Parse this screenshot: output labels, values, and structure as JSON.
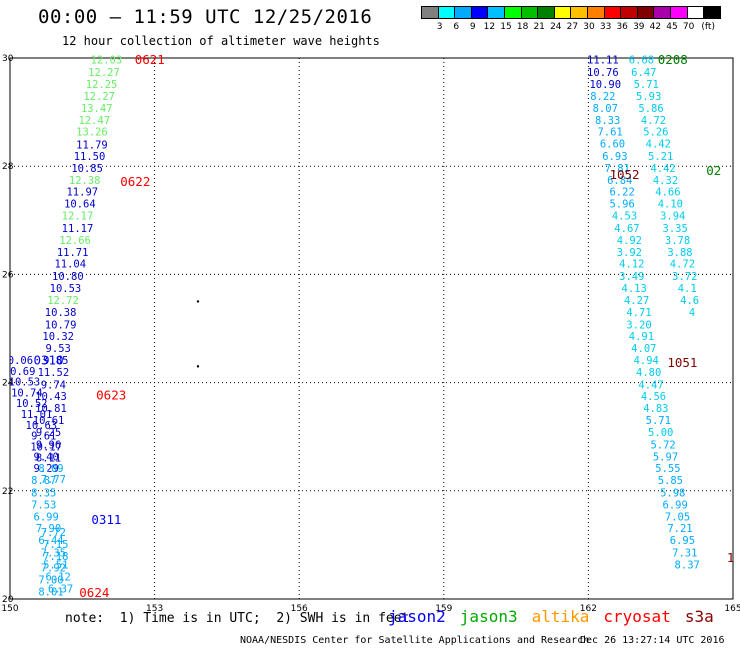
{
  "header": {
    "title": "00:00 – 11:59 UTC 12/25/2016",
    "subtitle": "12 hour collection of altimeter wave heights"
  },
  "colorbar": {
    "unit": "(ft)",
    "labels": [
      "3",
      "6",
      "9",
      "12",
      "15",
      "18",
      "21",
      "24",
      "27",
      "30",
      "33",
      "36",
      "39",
      "42",
      "45",
      "70"
    ],
    "colors": [
      "#808080",
      "#00ffff",
      "#00aaff",
      "#0000ff",
      "#00c0ff",
      "#00ff00",
      "#00c000",
      "#008000",
      "#ffff00",
      "#ffc000",
      "#ff8000",
      "#ff0000",
      "#c00000",
      "#800000",
      "#aa00aa",
      "#ff00ff",
      "#ffffff",
      "#000000"
    ]
  },
  "footer": {
    "note": "note:  1) Time is in UTC;  2) SWH is in feet",
    "credit": "NOAA/NESDIS Center for Satellite Applications and Research",
    "timestamp": "Dec 26 13:27:14 UTC 2016"
  },
  "legend": [
    {
      "name": "jason2",
      "color": "#0000ff"
    },
    {
      "name": "jason3",
      "color": "#00aa00"
    },
    {
      "name": "altika",
      "color": "#ff9900"
    },
    {
      "name": "cryosat",
      "color": "#ff0000"
    },
    {
      "name": "s3a",
      "color": "#880000"
    }
  ],
  "chart_data": {
    "type": "scatter",
    "xlim": [
      150,
      165
    ],
    "ylim": [
      20,
      30
    ],
    "x_ticks": [
      "150",
      "153",
      "156",
      "159",
      "162",
      "165"
    ],
    "y_ticks": [
      "20",
      "22",
      "24",
      "26",
      "28",
      "30"
    ],
    "grid": true,
    "times": [
      {
        "label": "0621",
        "x": 152.9,
        "y": 29.95,
        "color": "#ff0000"
      },
      {
        "label": "0622",
        "x": 152.6,
        "y": 27.7,
        "color": "#ff0000"
      },
      {
        "label": "0623",
        "x": 152.1,
        "y": 23.75,
        "color": "#ff0000"
      },
      {
        "label": "0624",
        "x": 151.75,
        "y": 20.1,
        "color": "#ff0000"
      },
      {
        "label": "0310",
        "x": 150.8,
        "y": 24.4,
        "color": "#0000ff"
      },
      {
        "label": "0311",
        "x": 152.0,
        "y": 21.45,
        "color": "#0000ff"
      },
      {
        "label": "0208",
        "x": 163.75,
        "y": 29.95,
        "color": "#008000"
      },
      {
        "label": "1052",
        "x": 162.75,
        "y": 27.83,
        "color": "#800000"
      },
      {
        "label": "1051",
        "x": 163.95,
        "y": 24.35,
        "color": "#800000"
      },
      {
        "label": "02",
        "x": 164.6,
        "y": 27.9,
        "color": "#008000"
      },
      {
        "label": "1",
        "x": 164.95,
        "y": 20.75,
        "color": "#800000"
      }
    ],
    "points": [
      {
        "v": "12.03",
        "x": 152.0,
        "y": 29.95,
        "c": "#66ee66"
      },
      {
        "v": "12.27",
        "x": 151.95,
        "y": 29.72,
        "c": "#66ee66"
      },
      {
        "v": "12.25",
        "x": 151.9,
        "y": 29.5,
        "c": "#66ee66"
      },
      {
        "v": "12.27",
        "x": 151.85,
        "y": 29.28,
        "c": "#66ee66"
      },
      {
        "v": "13.47",
        "x": 151.8,
        "y": 29.06,
        "c": "#66ee66"
      },
      {
        "v": "12.47",
        "x": 151.75,
        "y": 28.84,
        "c": "#66ee66"
      },
      {
        "v": "13.26",
        "x": 151.7,
        "y": 28.62,
        "c": "#66ee66"
      },
      {
        "v": "11.79",
        "x": 151.7,
        "y": 28.38,
        "c": "#0000cc"
      },
      {
        "v": "11.50",
        "x": 151.65,
        "y": 28.17,
        "c": "#0000cc"
      },
      {
        "v": "10.85",
        "x": 151.6,
        "y": 27.95,
        "c": "#0000cc"
      },
      {
        "v": "12.38",
        "x": 151.55,
        "y": 27.73,
        "c": "#66ee66"
      },
      {
        "v": "11.97",
        "x": 151.5,
        "y": 27.51,
        "c": "#0000cc"
      },
      {
        "v": "10.64",
        "x": 151.45,
        "y": 27.29,
        "c": "#0000cc"
      },
      {
        "v": "12.17",
        "x": 151.4,
        "y": 27.07,
        "c": "#66ee66"
      },
      {
        "v": "11.17",
        "x": 151.4,
        "y": 26.84,
        "c": "#0000cc"
      },
      {
        "v": "12.66",
        "x": 151.35,
        "y": 26.62,
        "c": "#66ee66"
      },
      {
        "v": "11.71",
        "x": 151.3,
        "y": 26.4,
        "c": "#0000cc"
      },
      {
        "v": "11.04",
        "x": 151.25,
        "y": 26.18,
        "c": "#0000cc"
      },
      {
        "v": "10.80",
        "x": 151.2,
        "y": 25.95,
        "c": "#0000cc"
      },
      {
        "v": "10.53",
        "x": 151.15,
        "y": 25.73,
        "c": "#0000cc"
      },
      {
        "v": "12.72",
        "x": 151.1,
        "y": 25.51,
        "c": "#66ee66"
      },
      {
        "v": "10.38",
        "x": 151.05,
        "y": 25.29,
        "c": "#0000cc"
      },
      {
        "v": "10.79",
        "x": 151.05,
        "y": 25.06,
        "c": "#0000cc"
      },
      {
        "v": "10.32",
        "x": 151.0,
        "y": 24.84,
        "c": "#0000cc"
      },
      {
        "v": "9.53",
        "x": 151.0,
        "y": 24.62,
        "c": "#0000cc"
      },
      {
        "v": "9.85",
        "x": 150.95,
        "y": 24.4,
        "c": "#0000cc"
      },
      {
        "v": "11.52",
        "x": 150.9,
        "y": 24.18,
        "c": "#0000cc"
      },
      {
        "v": "9.74",
        "x": 150.9,
        "y": 23.95,
        "c": "#0000cc"
      },
      {
        "v": "10.43",
        "x": 150.85,
        "y": 23.73,
        "c": "#0000cc"
      },
      {
        "v": "10.81",
        "x": 150.85,
        "y": 23.51,
        "c": "#0000cc"
      },
      {
        "v": "10.61",
        "x": 150.8,
        "y": 23.29,
        "c": "#0000cc"
      },
      {
        "v": "9.25",
        "x": 150.8,
        "y": 23.07,
        "c": "#0000cc"
      },
      {
        "v": "9.96",
        "x": 150.8,
        "y": 22.84,
        "c": "#0000cc"
      },
      {
        "v": "9.40",
        "x": 150.75,
        "y": 22.62,
        "c": "#0000cc"
      },
      {
        "v": "9.29",
        "x": 150.75,
        "y": 22.4,
        "c": "#0000cc"
      },
      {
        "v": "8.87",
        "x": 150.7,
        "y": 22.18,
        "c": "#00aaff"
      },
      {
        "v": "8.35",
        "x": 150.7,
        "y": 21.95,
        "c": "#00aaff"
      },
      {
        "v": "7.53",
        "x": 150.7,
        "y": 21.73,
        "c": "#00aaff"
      },
      {
        "v": "6.99",
        "x": 150.75,
        "y": 21.51,
        "c": "#00aaff"
      },
      {
        "v": "7.90",
        "x": 150.8,
        "y": 21.29,
        "c": "#00aaff"
      },
      {
        "v": "6.44",
        "x": 150.85,
        "y": 21.07,
        "c": "#00aaff"
      },
      {
        "v": "7.35",
        "x": 150.9,
        "y": 20.84,
        "c": "#00aaff"
      },
      {
        "v": "5.51",
        "x": 150.95,
        "y": 20.62,
        "c": "#00aaff"
      },
      {
        "v": "6.12",
        "x": 151.0,
        "y": 20.4,
        "c": "#00aaff"
      },
      {
        "v": "6.37",
        "x": 151.05,
        "y": 20.18,
        "c": "#00aaff"
      },
      {
        "v": "10.06",
        "x": 150.15,
        "y": 24.4,
        "c": "#0000cc"
      },
      {
        "v": "10.69",
        "x": 150.2,
        "y": 24.2,
        "c": "#0000cc"
      },
      {
        "v": "10.53",
        "x": 150.3,
        "y": 24.0,
        "c": "#0000cc"
      },
      {
        "v": "10.74",
        "x": 150.35,
        "y": 23.8,
        "c": "#0000cc"
      },
      {
        "v": "10.52",
        "x": 150.45,
        "y": 23.6,
        "c": "#0000cc"
      },
      {
        "v": "11.01",
        "x": 150.55,
        "y": 23.4,
        "c": "#0000cc"
      },
      {
        "v": "10.63",
        "x": 150.65,
        "y": 23.2,
        "c": "#0000cc"
      },
      {
        "v": "9.61",
        "x": 150.7,
        "y": 23.0,
        "c": "#0000cc"
      },
      {
        "v": "10.17",
        "x": 150.75,
        "y": 22.8,
        "c": "#0000cc"
      },
      {
        "v": "8.11",
        "x": 150.8,
        "y": 22.6,
        "c": "#0000cc"
      },
      {
        "v": "8.09",
        "x": 150.85,
        "y": 22.4,
        "c": "#00aaff"
      },
      {
        "v": "7.77",
        "x": 150.9,
        "y": 22.2,
        "c": "#00aaff"
      },
      {
        "v": "7.15",
        "x": 150.95,
        "y": 21.0,
        "c": "#00aaff"
      },
      {
        "v": "7.18",
        "x": 150.95,
        "y": 20.78,
        "c": "#00aaff"
      },
      {
        "v": "7.92",
        "x": 150.9,
        "y": 20.56,
        "c": "#00aaff"
      },
      {
        "v": "7.00",
        "x": 150.85,
        "y": 20.34,
        "c": "#00aaff"
      },
      {
        "v": "8.01",
        "x": 150.85,
        "y": 20.12,
        "c": "#00aaff"
      },
      {
        "v": "7.72",
        "x": 150.9,
        "y": 21.22,
        "c": "#00aaff"
      },
      {
        "v": "11.11",
        "x": 162.3,
        "y": 29.95,
        "c": "#0000cc"
      },
      {
        "v": "10.76",
        "x": 162.3,
        "y": 29.72,
        "c": "#0000cc"
      },
      {
        "v": "10.90",
        "x": 162.35,
        "y": 29.5,
        "c": "#0000cc"
      },
      {
        "v": "8.22",
        "x": 162.3,
        "y": 29.28,
        "c": "#00aaff"
      },
      {
        "v": "8.07",
        "x": 162.35,
        "y": 29.06,
        "c": "#00aaff"
      },
      {
        "v": "8.33",
        "x": 162.4,
        "y": 28.84,
        "c": "#00aaff"
      },
      {
        "v": "7.61",
        "x": 162.45,
        "y": 28.62,
        "c": "#00aaff"
      },
      {
        "v": "6.60",
        "x": 162.5,
        "y": 28.4,
        "c": "#00aaff"
      },
      {
        "v": "6.93",
        "x": 162.55,
        "y": 28.17,
        "c": "#00aaff"
      },
      {
        "v": "7.81",
        "x": 162.6,
        "y": 27.95,
        "c": "#00aaff"
      },
      {
        "v": "6.84",
        "x": 162.65,
        "y": 27.73,
        "c": "#00aaff"
      },
      {
        "v": "6.22",
        "x": 162.7,
        "y": 27.51,
        "c": "#00aaff"
      },
      {
        "v": "5.96",
        "x": 162.7,
        "y": 27.29,
        "c": "#00aaff"
      },
      {
        "v": "4.53",
        "x": 162.75,
        "y": 27.07,
        "c": "#00ccee"
      },
      {
        "v": "4.67",
        "x": 162.8,
        "y": 26.84,
        "c": "#00ccee"
      },
      {
        "v": "4.92",
        "x": 162.85,
        "y": 26.62,
        "c": "#00ccee"
      },
      {
        "v": "3.92",
        "x": 162.85,
        "y": 26.4,
        "c": "#00ccee"
      },
      {
        "v": "4.12",
        "x": 162.9,
        "y": 26.18,
        "c": "#00ccee"
      },
      {
        "v": "3.49",
        "x": 162.9,
        "y": 25.95,
        "c": "#00ccee"
      },
      {
        "v": "4.13",
        "x": 162.95,
        "y": 25.73,
        "c": "#00ccee"
      },
      {
        "v": "4.27",
        "x": 163.0,
        "y": 25.51,
        "c": "#00ccee"
      },
      {
        "v": "4.71",
        "x": 163.05,
        "y": 25.29,
        "c": "#00ccee"
      },
      {
        "v": "3.20",
        "x": 163.05,
        "y": 25.06,
        "c": "#00ccee"
      },
      {
        "v": "4.91",
        "x": 163.1,
        "y": 24.84,
        "c": "#00ccee"
      },
      {
        "v": "4.07",
        "x": 163.15,
        "y": 24.62,
        "c": "#00ccee"
      },
      {
        "v": "4.94",
        "x": 163.2,
        "y": 24.4,
        "c": "#00ccee"
      },
      {
        "v": "4.80",
        "x": 163.25,
        "y": 24.18,
        "c": "#00ccee"
      },
      {
        "v": "4.47",
        "x": 163.3,
        "y": 23.95,
        "c": "#00ccee"
      },
      {
        "v": "4.56",
        "x": 163.35,
        "y": 23.73,
        "c": "#00ccee"
      },
      {
        "v": "4.83",
        "x": 163.4,
        "y": 23.51,
        "c": "#00ccee"
      },
      {
        "v": "5.71",
        "x": 163.45,
        "y": 23.29,
        "c": "#00aaff"
      },
      {
        "v": "5.00",
        "x": 163.5,
        "y": 23.07,
        "c": "#00ccee"
      },
      {
        "v": "5.72",
        "x": 163.55,
        "y": 22.84,
        "c": "#00aaff"
      },
      {
        "v": "5.97",
        "x": 163.6,
        "y": 22.62,
        "c": "#00aaff"
      },
      {
        "v": "5.55",
        "x": 163.65,
        "y": 22.4,
        "c": "#00aaff"
      },
      {
        "v": "5.85",
        "x": 163.7,
        "y": 22.18,
        "c": "#00aaff"
      },
      {
        "v": "5.98",
        "x": 163.75,
        "y": 21.95,
        "c": "#00aaff"
      },
      {
        "v": "6.99",
        "x": 163.8,
        "y": 21.73,
        "c": "#00aaff"
      },
      {
        "v": "7.05",
        "x": 163.85,
        "y": 21.51,
        "c": "#00aaff"
      },
      {
        "v": "7.21",
        "x": 163.9,
        "y": 21.29,
        "c": "#00aaff"
      },
      {
        "v": "6.95",
        "x": 163.95,
        "y": 21.07,
        "c": "#00aaff"
      },
      {
        "v": "7.31",
        "x": 164.0,
        "y": 20.84,
        "c": "#00aaff"
      },
      {
        "v": "8.37",
        "x": 164.05,
        "y": 20.62,
        "c": "#00aaff"
      },
      {
        "v": "6.68",
        "x": 163.1,
        "y": 29.95,
        "c": "#00ccee"
      },
      {
        "v": "6.47",
        "x": 163.15,
        "y": 29.72,
        "c": "#00ccee"
      },
      {
        "v": "5.71",
        "x": 163.2,
        "y": 29.5,
        "c": "#00ccee"
      },
      {
        "v": "5.93",
        "x": 163.25,
        "y": 29.28,
        "c": "#00ccee"
      },
      {
        "v": "5.86",
        "x": 163.3,
        "y": 29.06,
        "c": "#00ccee"
      },
      {
        "v": "4.72",
        "x": 163.35,
        "y": 28.84,
        "c": "#00ccee"
      },
      {
        "v": "5.26",
        "x": 163.4,
        "y": 28.62,
        "c": "#00ccee"
      },
      {
        "v": "4.42",
        "x": 163.45,
        "y": 28.4,
        "c": "#00ccee"
      },
      {
        "v": "5.21",
        "x": 163.5,
        "y": 28.17,
        "c": "#00ccee"
      },
      {
        "v": "4.42",
        "x": 163.55,
        "y": 27.95,
        "c": "#00ccee"
      },
      {
        "v": "4.32",
        "x": 163.6,
        "y": 27.73,
        "c": "#00ccee"
      },
      {
        "v": "4.66",
        "x": 163.65,
        "y": 27.51,
        "c": "#00ccee"
      },
      {
        "v": "4.10",
        "x": 163.7,
        "y": 27.29,
        "c": "#00ccee"
      },
      {
        "v": "3.94",
        "x": 163.75,
        "y": 27.07,
        "c": "#00ccee"
      },
      {
        "v": "3.35",
        "x": 163.8,
        "y": 26.84,
        "c": "#00ccee"
      },
      {
        "v": "3.78",
        "x": 163.85,
        "y": 26.62,
        "c": "#00ccee"
      },
      {
        "v": "3.88",
        "x": 163.9,
        "y": 26.4,
        "c": "#00ccee"
      },
      {
        "v": "4.72",
        "x": 163.95,
        "y": 26.18,
        "c": "#00ccee"
      },
      {
        "v": "3.72",
        "x": 164.0,
        "y": 25.95,
        "c": "#00ccee"
      },
      {
        "v": "4.1",
        "x": 164.05,
        "y": 25.73,
        "c": "#00ccee"
      },
      {
        "v": "4.6",
        "x": 164.1,
        "y": 25.51,
        "c": "#00ccee"
      },
      {
        "v": "4",
        "x": 164.15,
        "y": 25.29,
        "c": "#00ccee"
      }
    ]
  }
}
